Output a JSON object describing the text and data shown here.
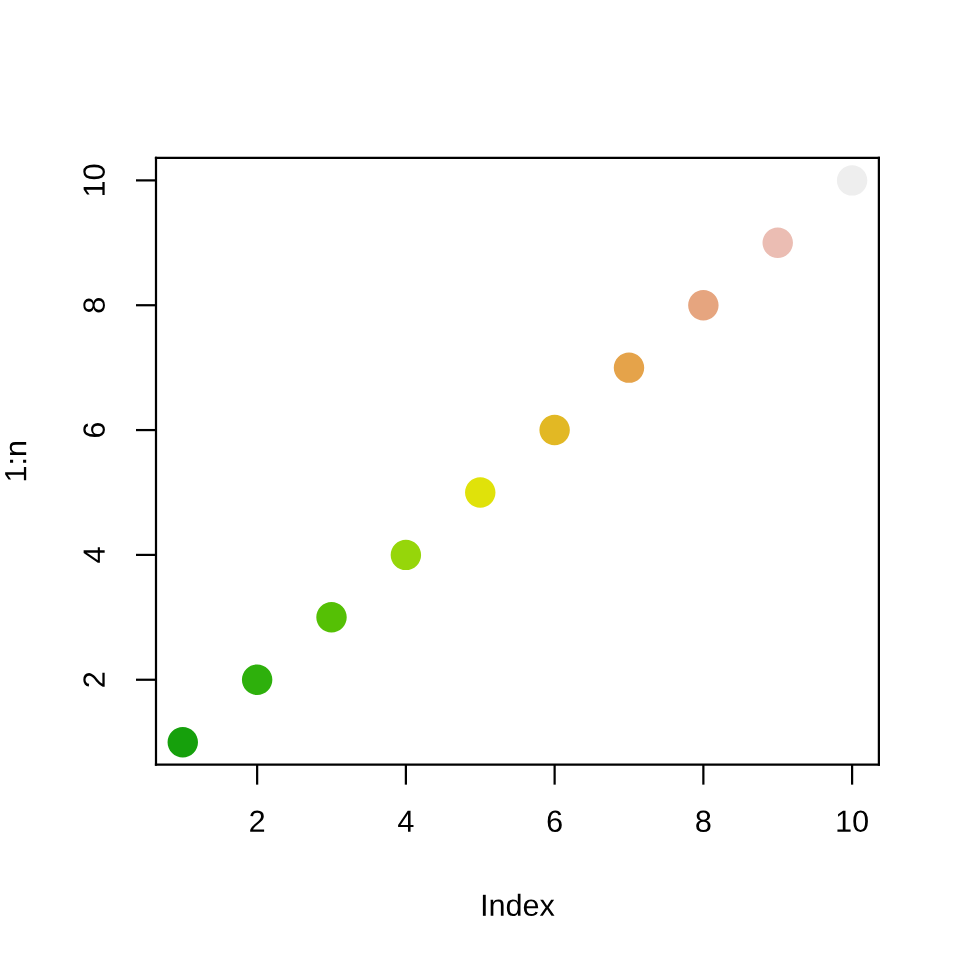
{
  "chart_data": {
    "type": "scatter",
    "xlabel": "Index",
    "ylabel": "1:n",
    "x": [
      1,
      2,
      3,
      4,
      5,
      6,
      7,
      8,
      9,
      10
    ],
    "values": [
      1,
      2,
      3,
      4,
      5,
      6,
      7,
      8,
      9,
      10
    ],
    "colors": [
      "#16a00c",
      "#2eb00c",
      "#55c005",
      "#96d60a",
      "#e0e20a",
      "#e2b824",
      "#e5a34a",
      "#e6a57f",
      "#ebbdb3",
      "#eeeeee"
    ],
    "xlim": [
      0.64,
      10.36
    ],
    "ylim": [
      0.64,
      10.36
    ],
    "xticks": [
      2,
      4,
      6,
      8,
      10
    ],
    "yticks": [
      2,
      4,
      6,
      8,
      10
    ],
    "grid": false,
    "marker": "circle"
  }
}
